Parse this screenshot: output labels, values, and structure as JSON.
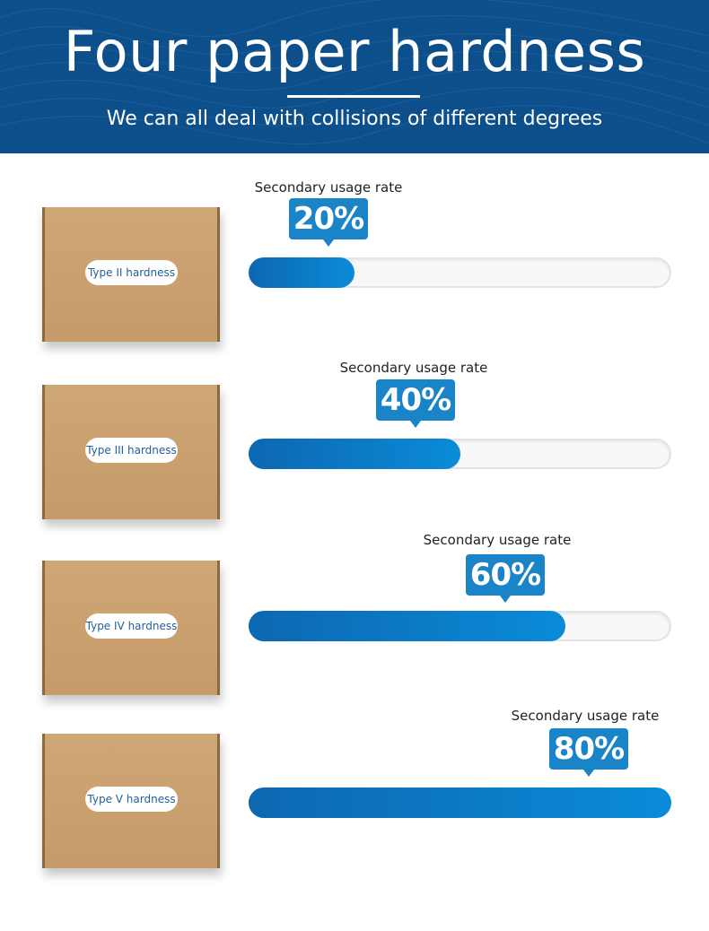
{
  "header": {
    "title": "Four paper hardness",
    "subtitle": "We can all deal with collisions of different degrees"
  },
  "rows": [
    {
      "box_label": "Type II hardness",
      "caption": "Secondary usage rate",
      "percent_label": "20%",
      "rate": 0.2
    },
    {
      "box_label": "Type III hardness",
      "caption": "Secondary usage rate",
      "percent_label": "40%",
      "rate": 0.4
    },
    {
      "box_label": "Type IV hardness",
      "caption": "Secondary usage rate",
      "percent_label": "60%",
      "rate": 0.6
    },
    {
      "box_label": "Type V hardness",
      "caption": "Secondary usage rate",
      "percent_label": "80%",
      "rate": 0.8
    }
  ],
  "colors": {
    "header_bg": "#0d4f8b",
    "badge": "#1a84c8",
    "bar_start": "#0d67b1",
    "bar_end": "#0a8bd8",
    "box": "#c99f6e"
  }
}
